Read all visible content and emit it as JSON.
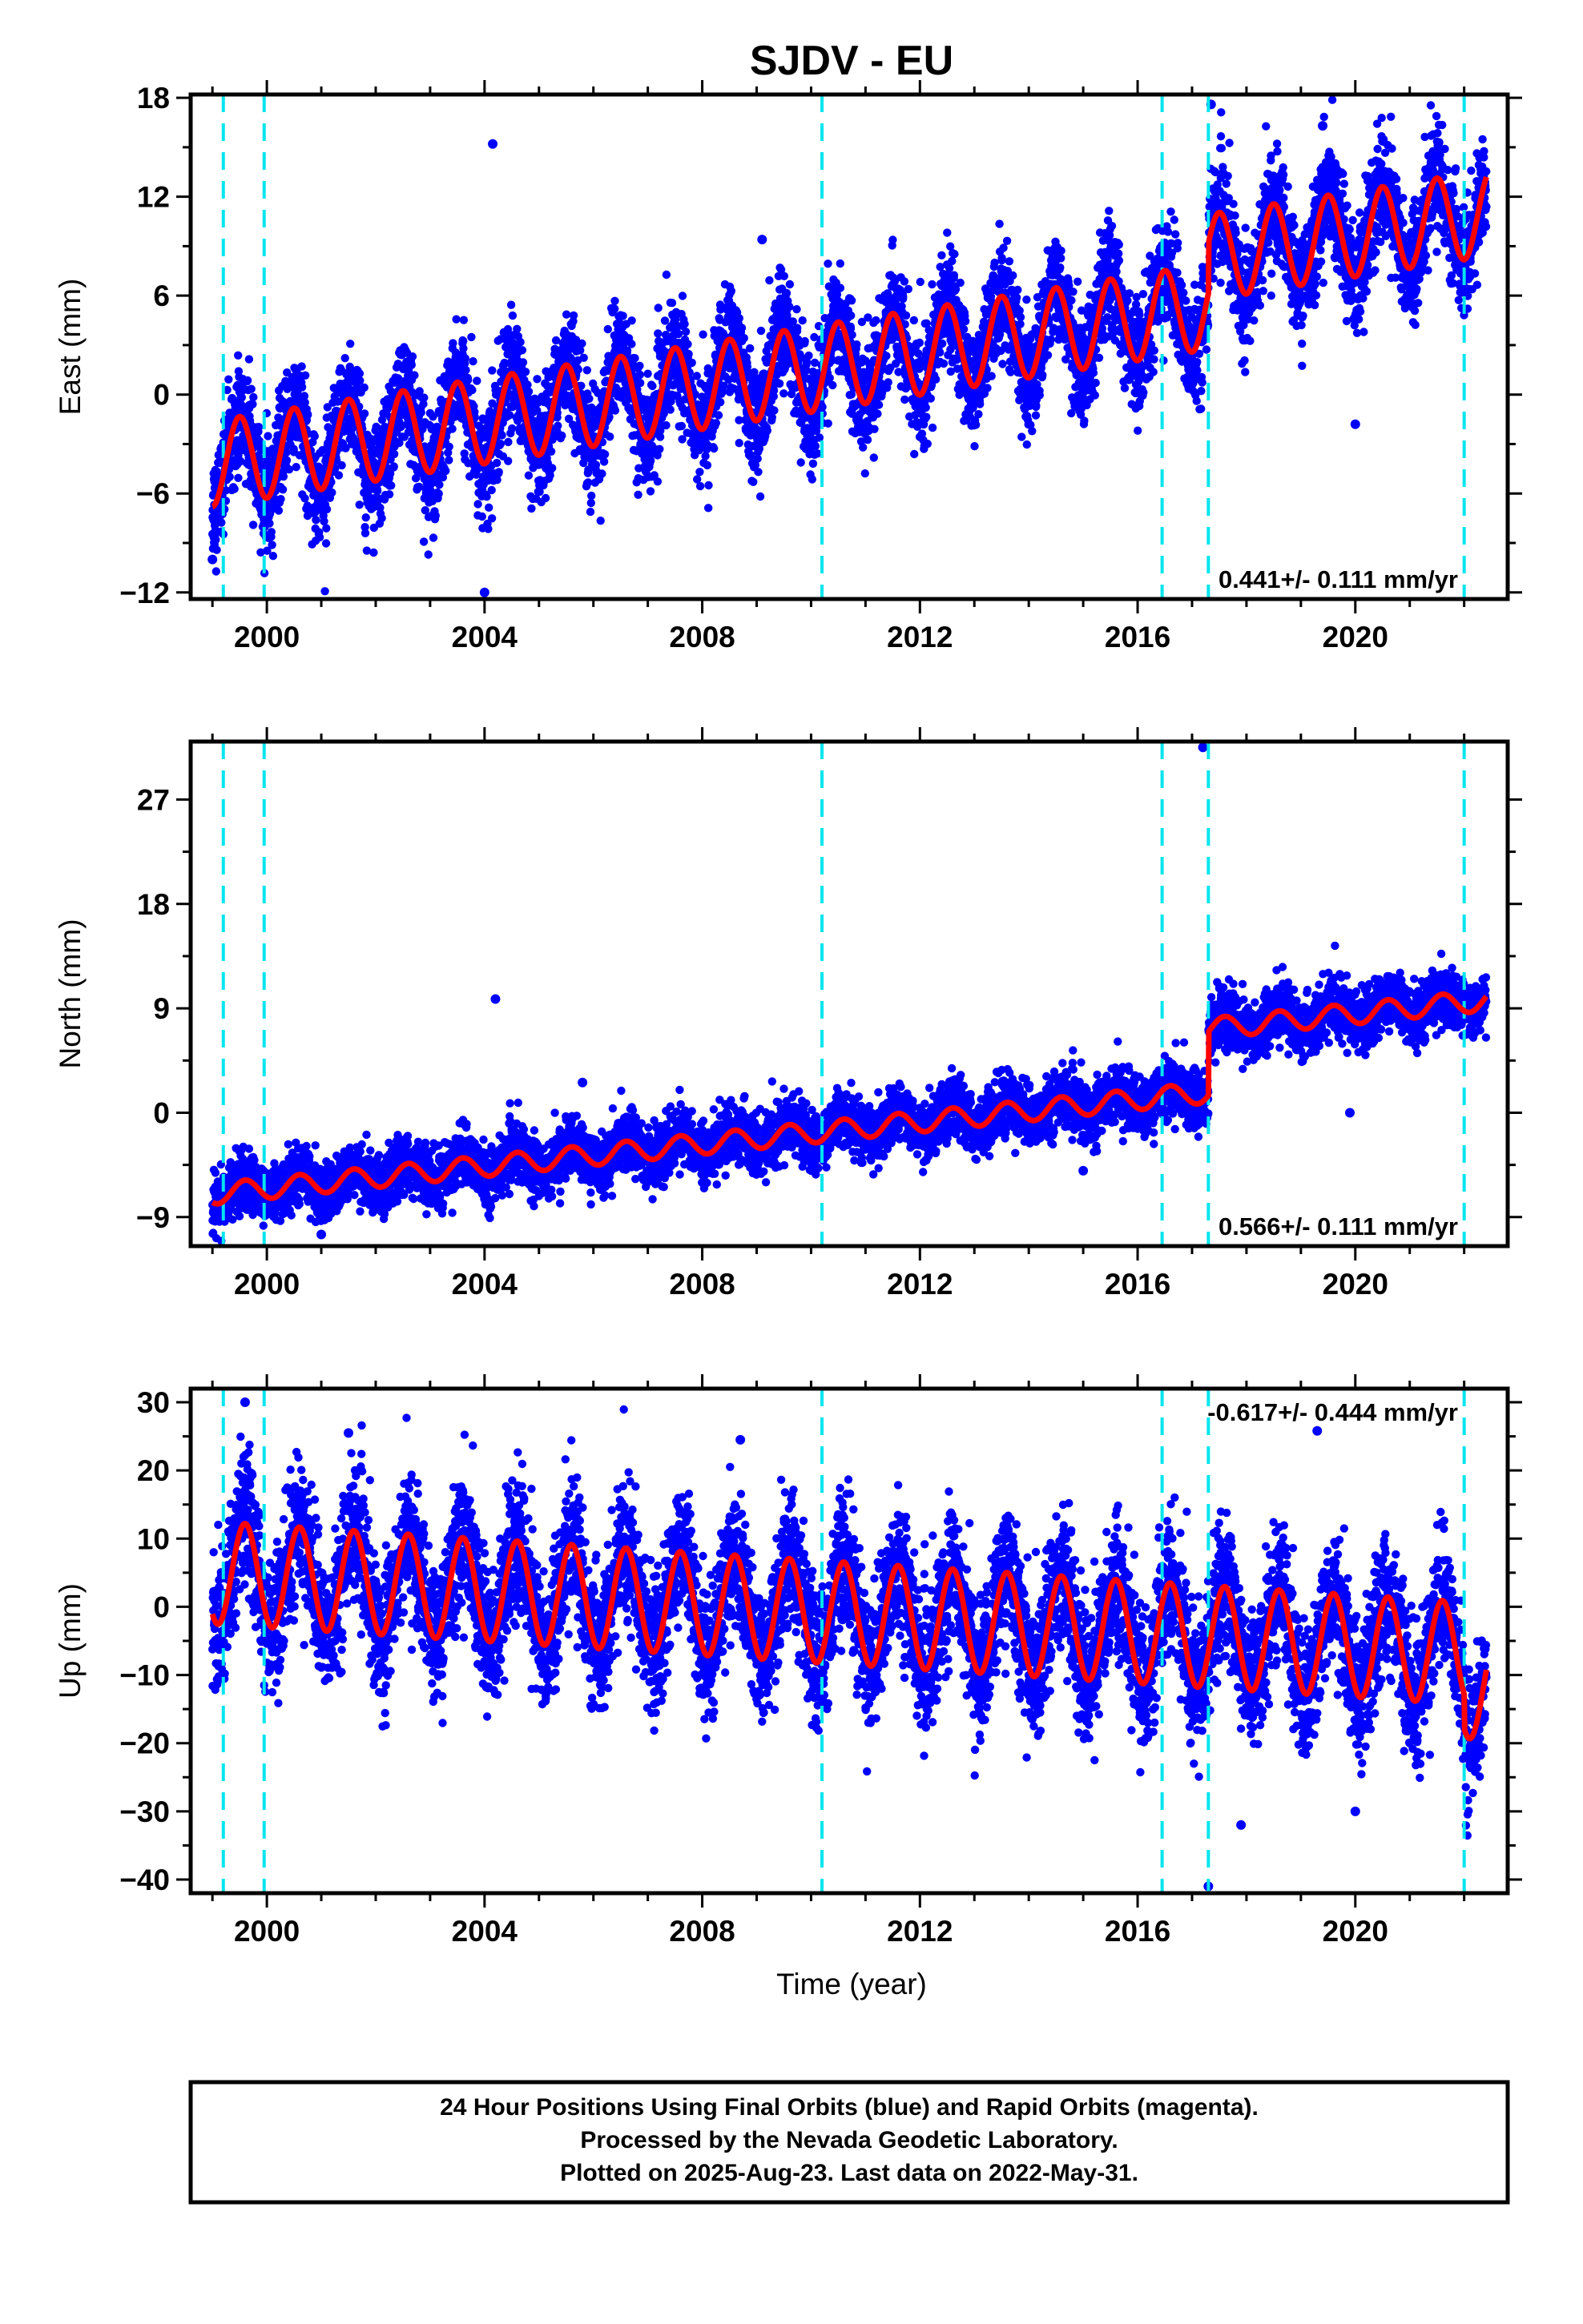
{
  "figure": {
    "title": "SJDV - EU",
    "xlabel": "Time (year)",
    "footer_lines": [
      "24 Hour Positions Using Final Orbits (blue) and Rapid Orbits (magenta).",
      "Processed by the Nevada Geodetic Laboratory.",
      "Plotted on 2025-Aug-23. Last data on 2022-May-31."
    ],
    "colors": {
      "final_orbits": "#0000ff",
      "model_fit": "#ff0000",
      "steps": "#00e5ee",
      "frame": "#000000"
    }
  },
  "chart_data": [
    {
      "type": "scatter",
      "component": "east",
      "ylabel": "East (mm)",
      "rate": "0.441+/- 0.111 mm/yr",
      "rate_position": "bottom-right",
      "xlim": [
        1998.6,
        2022.8
      ],
      "ylim": [
        -12.4,
        18.2
      ],
      "xticks": [
        2000,
        2004,
        2008,
        2012,
        2016,
        2020
      ],
      "yticks": [
        -12,
        -6,
        0,
        6,
        12,
        18
      ],
      "ytick_labels": [
        "−12",
        "−6",
        "0",
        "6",
        "12",
        "18"
      ],
      "x_start": 1999.0,
      "x_end": 2022.41,
      "step_epochs": [
        1999.2,
        1999.95,
        2010.2,
        2016.45,
        2017.3,
        2022.0
      ],
      "model": {
        "trend_start": -4.2,
        "trend_end": 8.0,
        "annual_amplitude": 2.6,
        "annual_phase_peak": 0.5,
        "offsets": [
          {
            "epoch": 2017.3,
            "value": 3.0
          }
        ],
        "scatter_sd": 1.6
      },
      "outliers": [
        [
          2004.15,
          15.2
        ],
        [
          2009.1,
          9.4
        ],
        [
          2017.35,
          17.6
        ],
        [
          2019.4,
          16.3
        ],
        [
          2020.0,
          -1.8
        ],
        [
          2004.0,
          -12.0
        ],
        [
          1999.0,
          -10.0
        ]
      ],
      "grid": false
    },
    {
      "type": "scatter",
      "component": "north",
      "ylabel": "North (mm)",
      "rate": "0.566+/- 0.111 mm/yr",
      "rate_position": "bottom-right",
      "xlim": [
        1998.6,
        2022.8
      ],
      "ylim": [
        -11.5,
        32.0
      ],
      "xticks": [
        2000,
        2004,
        2008,
        2012,
        2016,
        2020
      ],
      "yticks": [
        -9,
        0,
        9,
        18,
        27
      ],
      "ytick_labels": [
        "−9",
        "0",
        "9",
        "18",
        "27"
      ],
      "x_start": 1999.0,
      "x_end": 2022.41,
      "step_epochs": [
        1999.2,
        1999.95,
        2010.2,
        2016.45,
        2017.3,
        2022.0
      ],
      "model": {
        "trend_start": -7.0,
        "trend_end": 4.2,
        "annual_amplitude": 0.9,
        "annual_phase_peak": 0.6,
        "offsets": [
          {
            "epoch": 2017.3,
            "value": 5.5
          }
        ],
        "scatter_sd": 1.2
      },
      "outliers": [
        [
          2004.2,
          9.8
        ],
        [
          2017.2,
          31.5
        ],
        [
          2005.8,
          2.6
        ],
        [
          2015.0,
          -5.0
        ],
        [
          2019.9,
          0.0
        ],
        [
          2001.0,
          -10.5
        ]
      ],
      "grid": false
    },
    {
      "type": "scatter",
      "component": "up",
      "ylabel": "Up (mm)",
      "rate": "-0.617+/- 0.444 mm/yr",
      "rate_position": "top-right",
      "xlim": [
        1998.6,
        2022.8
      ],
      "ylim": [
        -42.0,
        32.0
      ],
      "xticks": [
        2000,
        2004,
        2008,
        2012,
        2016,
        2020
      ],
      "yticks": [
        -40,
        -30,
        -20,
        -10,
        0,
        10,
        20,
        30
      ],
      "ytick_labels": [
        "−40",
        "−30",
        "−20",
        "−10",
        "0",
        "10",
        "20",
        "30"
      ],
      "x_start": 1999.0,
      "x_end": 2022.41,
      "step_epochs": [
        1999.2,
        1999.95,
        2010.2,
        2016.45,
        2017.3,
        2022.0
      ],
      "model": {
        "trend_start": 5.0,
        "trend_end": -7.0,
        "annual_amplitude": 7.5,
        "annual_phase_peak": 0.6,
        "offsets": [
          {
            "epoch": 2022.0,
            "value": -5.0
          }
        ],
        "scatter_sd": 4.8
      },
      "outliers": [
        [
          1999.6,
          30.0
        ],
        [
          2019.3,
          25.8
        ],
        [
          2017.3,
          -41.0
        ],
        [
          2017.9,
          -32.0
        ],
        [
          2020.0,
          -30.0
        ],
        [
          2008.7,
          24.5
        ],
        [
          2001.5,
          25.5
        ]
      ],
      "grid": false
    }
  ]
}
